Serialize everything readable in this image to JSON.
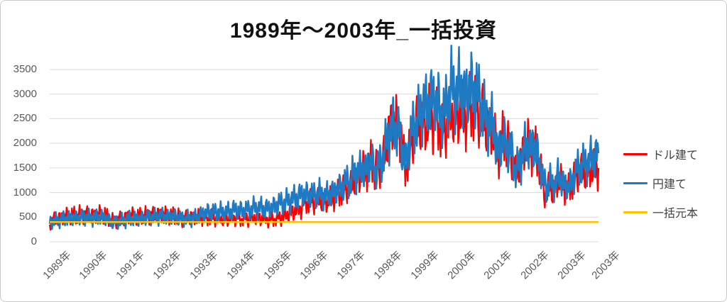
{
  "title": "1989年～2003年_一括投資",
  "chart_data": {
    "type": "line",
    "title": "1989年～2003年_一括投資",
    "xlabel": "",
    "ylabel": "",
    "ylim": [
      0,
      3500
    ],
    "y_ticks": [
      0,
      500,
      1000,
      1500,
      2000,
      2500,
      3000,
      3500
    ],
    "grid": true,
    "legend_position": "right",
    "x_unit": "monthly points from 1989-01 to 2003-12",
    "x_tick_labels": [
      "1989年",
      "1990年",
      "1991年",
      "1992年",
      "1993年",
      "1994年",
      "1995年",
      "1996年",
      "1997年",
      "1998年",
      "1999年",
      "2000年",
      "2001年",
      "2002年",
      "2003年",
      "2003年"
    ],
    "x_tick_month_indices": [
      0,
      12,
      24,
      36,
      48,
      60,
      72,
      84,
      96,
      108,
      120,
      132,
      144,
      156,
      168,
      179
    ],
    "series": [
      {
        "name": "ドル建て",
        "color": "#FF0000",
        "values": [
          400,
          430,
          455,
          470,
          490,
          515,
          525,
          535,
          545,
          540,
          550,
          555,
          550,
          525,
          540,
          535,
          560,
          555,
          550,
          490,
          435,
          415,
          450,
          460,
          445,
          500,
          530,
          525,
          530,
          515,
          530,
          535,
          540,
          545,
          530,
          555,
          555,
          550,
          535,
          525,
          530,
          520,
          500,
          470,
          475,
          480,
          495,
          500,
          495,
          500,
          495,
          480,
          490,
          490,
          485,
          455,
          465,
          465,
          460,
          470,
          500,
          480,
          460,
          465,
          470,
          475,
          485,
          495,
          480,
          475,
          455,
          460,
          450,
          460,
          470,
          490,
          510,
          540,
          570,
          600,
          630,
          655,
          690,
          780,
          800,
          820,
          810,
          830,
          860,
          840,
          810,
          850,
          880,
          920,
          970,
          1000,
          1060,
          1120,
          1080,
          1250,
          1280,
          1330,
          1450,
          1400,
          1520,
          1640,
          1420,
          1510,
          1530,
          1700,
          2000,
          2350,
          2460,
          2350,
          2400,
          1900,
          1480,
          1700,
          2100,
          2300,
          2370,
          2400,
          2540,
          2295,
          2610,
          2500,
          2490,
          2350,
          2225,
          2300,
          2450,
          2560,
          2600,
          2550,
          2680,
          2515,
          2600,
          2700,
          2726,
          2690,
          2600,
          2610,
          2400,
          2320,
          2300,
          2155,
          1730,
          1940,
          2106,
          2050,
          1870,
          1700,
          1380,
          1520,
          1720,
          1950,
          1960,
          1880,
          1930,
          1700,
          1550,
          1000,
          965,
          1150,
          1050,
          1100,
          1300,
          1200,
          1100,
          1040,
          1120,
          1280,
          1400,
          1430,
          1400,
          1420,
          1450,
          1480,
          1460,
          1500
        ]
      },
      {
        "name": "円建て",
        "color": "#1F7AC4",
        "values": [
          400,
          415,
          430,
          445,
          455,
          465,
          475,
          480,
          485,
          480,
          490,
          500,
          500,
          480,
          490,
          485,
          505,
          495,
          490,
          445,
          405,
          395,
          410,
          420,
          425,
          455,
          470,
          465,
          470,
          460,
          475,
          480,
          495,
          505,
          495,
          515,
          520,
          515,
          505,
          500,
          515,
          510,
          495,
          470,
          465,
          470,
          480,
          490,
          500,
          540,
          570,
          590,
          600,
          600,
          610,
          615,
          600,
          605,
          610,
          620,
          660,
          650,
          630,
          640,
          650,
          660,
          680,
          690,
          685,
          695,
          675,
          680,
          690,
          700,
          760,
          790,
          800,
          810,
          840,
          870,
          890,
          920,
          965,
          960,
          950,
          970,
          950,
          960,
          980,
          950,
          930,
          960,
          990,
          1010,
          1060,
          1100,
          1180,
          1240,
          1200,
          1380,
          1400,
          1420,
          1500,
          1450,
          1550,
          1630,
          1420,
          1520,
          1600,
          1800,
          2050,
          2250,
          2300,
          2250,
          2300,
          1850,
          1600,
          1900,
          2200,
          2400,
          2440,
          2600,
          2870,
          2610,
          2965,
          2900,
          2800,
          2750,
          2560,
          2650,
          3000,
          3110,
          3100,
          3000,
          3230,
          2895,
          3000,
          3130,
          3060,
          3100,
          2900,
          2776,
          2500,
          2464,
          2400,
          2345,
          1790,
          1940,
          2034,
          2000,
          1850,
          1750,
          1420,
          1550,
          1700,
          1900,
          1960,
          1900,
          1950,
          1740,
          1600,
          1210,
          1100,
          1250,
          1150,
          1200,
          1350,
          1250,
          1150,
          1100,
          1180,
          1350,
          1450,
          1570,
          1550,
          1600,
          1650,
          1700,
          1750,
          1800
        ]
      },
      {
        "name": "一括元本",
        "color": "#FFC000",
        "constant_value": 400
      }
    ]
  }
}
